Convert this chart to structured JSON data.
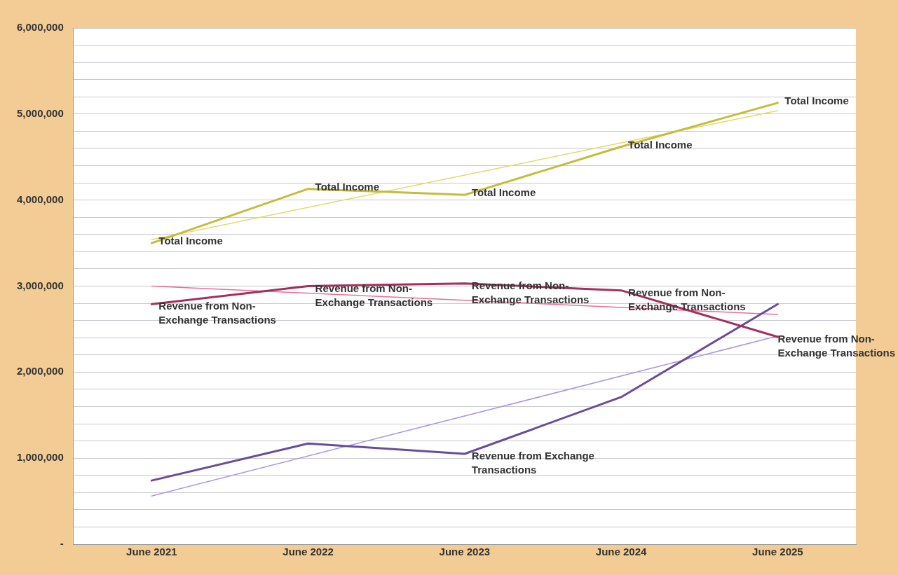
{
  "chart_data": {
    "type": "line",
    "categories": [
      "June 2021",
      "June 2022",
      "June 2023",
      "June 2024",
      "June 2025"
    ],
    "series": [
      {
        "color": "#c4bc3c",
        "values": [
          3500000,
          4130000,
          4060000,
          4620000,
          5130000
        ]
      },
      {
        "color": "#a3305c",
        "values": [
          2790000,
          3000000,
          3030000,
          2950000,
          2410000
        ]
      },
      {
        "color": "#6a4c9c",
        "values": [
          740000,
          1170000,
          1050000,
          1710000,
          2790000
        ]
      },
      {
        "type": "line",
        "color": "#e2da6a",
        "x": [
          "June 2021",
          "June 2025"
        ],
        "values": [
          3540000,
          5040000
        ]
      },
      {
        "type": "line",
        "color": "#e8709a",
        "x": [
          "June 2021",
          "June 2025"
        ],
        "values": [
          3000000,
          2670000
        ]
      },
      {
        "type": "line",
        "color": "#ab96dc",
        "x": [
          "June 2021",
          "June 2025"
        ],
        "values": [
          560000,
          2420000
        ]
      }
    ],
    "ylim": [
      0,
      6000000
    ],
    "yticks": [
      {
        "value": 0,
        "label": "-"
      },
      {
        "value": 200000,
        "label": null
      },
      {
        "value": 400000,
        "label": null
      },
      {
        "value": 600000,
        "label": null
      },
      {
        "value": 800000,
        "label": null
      },
      {
        "value": 1000000,
        "label": "1,000,000"
      },
      {
        "value": 1200000,
        "label": null
      },
      {
        "value": 1400000,
        "label": null
      },
      {
        "value": 1600000,
        "label": null
      },
      {
        "value": 1800000,
        "label": null
      },
      {
        "value": 2000000,
        "label": "2,000,000"
      },
      {
        "value": 2200000,
        "label": null
      },
      {
        "value": 2400000,
        "label": null
      },
      {
        "value": 2600000,
        "label": null
      },
      {
        "value": 2800000,
        "label": null
      },
      {
        "value": 3000000,
        "label": "3,000,000"
      },
      {
        "value": 3200000,
        "label": null
      },
      {
        "value": 3400000,
        "label": null
      },
      {
        "value": 3600000,
        "label": null
      },
      {
        "value": 3800000,
        "label": null
      },
      {
        "value": 4000000,
        "label": "4,000,000"
      },
      {
        "value": 4200000,
        "label": null
      },
      {
        "value": 4400000,
        "label": null
      },
      {
        "value": 4600000,
        "label": null
      },
      {
        "value": 4800000,
        "label": null
      },
      {
        "value": 5000000,
        "label": "5,000,000"
      },
      {
        "value": 5200000,
        "label": null
      },
      {
        "value": 5400000,
        "label": null
      },
      {
        "value": 5600000,
        "label": null
      },
      {
        "value": 5800000,
        "label": null
      },
      {
        "value": 6000000,
        "label": "6,000,000"
      }
    ],
    "grid": "y",
    "legend": false,
    "marker": "none",
    "line_style": "solid",
    "annotations": [
      {
        "text": "Total Income",
        "x": "June 2021",
        "y": 3500000
      },
      {
        "text": "Total Income",
        "x": "June 2022",
        "y": 4130000
      },
      {
        "text": "Total Income",
        "x": "June 2023",
        "y": 4060000
      },
      {
        "text": "Total Income",
        "x": "June 2024",
        "y": 4620000
      },
      {
        "text": "Total Income",
        "x": "June 2025",
        "y": 5130000
      },
      {
        "text": "Revenue from Non-Exchange Transactions",
        "x": "June 2021",
        "y": 2790000
      },
      {
        "text": "Revenue from Non-Exchange Transactions",
        "x": "June 2022",
        "y": 3000000
      },
      {
        "text": "Revenue from Non-Exchange Transactions",
        "x": "June 2023",
        "y": 3030000
      },
      {
        "text": "Revenue from Non-Exchange Transactions",
        "x": "June 2024",
        "y": 2950000
      },
      {
        "text": "Revenue from Non-Exchange Transactions",
        "x": "June 2025",
        "y": 2410000
      },
      {
        "text": "Revenue from Exchange Transactions",
        "x": "June 2023",
        "y": 1050000
      }
    ]
  }
}
